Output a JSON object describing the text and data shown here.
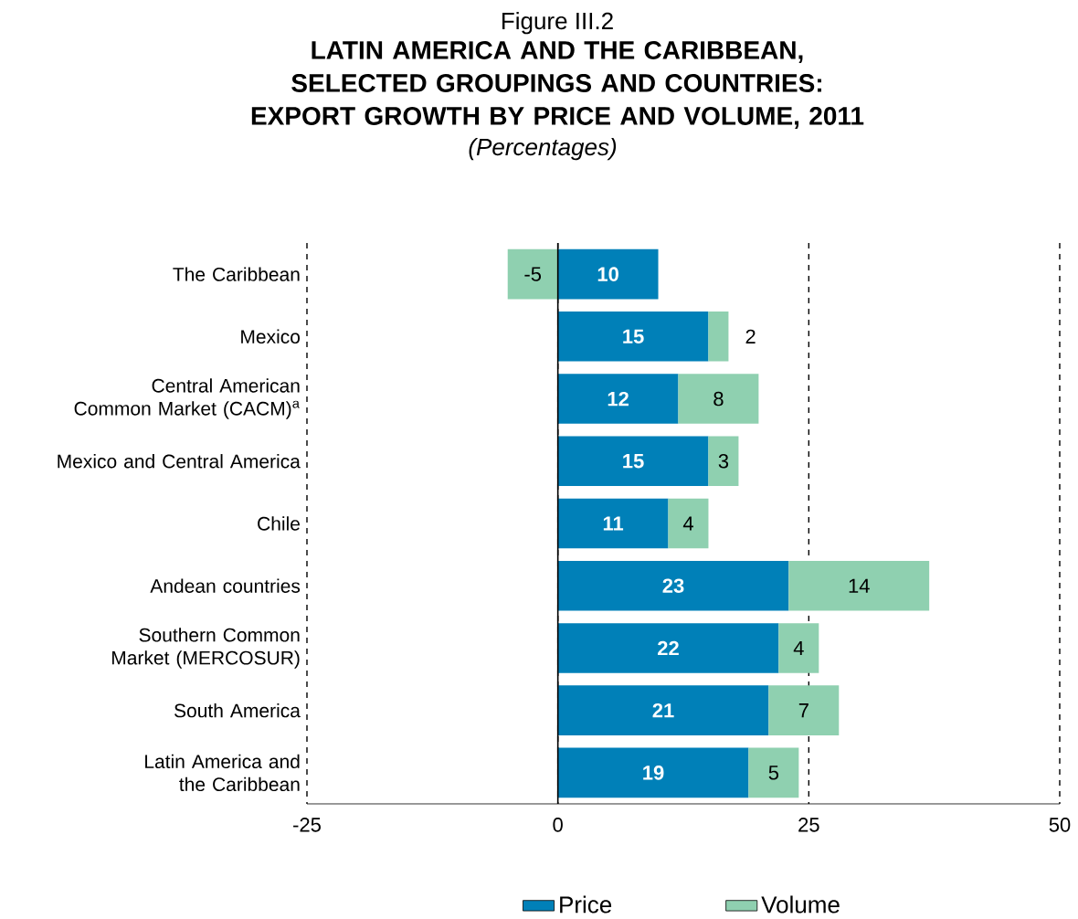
{
  "chart_data": {
    "type": "bar",
    "orientation": "horizontal",
    "stacked": true,
    "title": "LATIN AMERICA AND THE CARIBBEAN, SELECTED GROUPINGS AND COUNTRIES: EXPORT GROWTH BY PRICE AND VOLUME, 2011",
    "subtitle": "(Percentages)",
    "annotations": [
      "Figure III.2"
    ],
    "categories": [
      "The Caribbean",
      "Mexico",
      "Central American Common Market (CACM)$^{a}$",
      "Mexico and Central America",
      "Chile",
      "Andean countries",
      "Southern Common Market (MERCOSUR)",
      "South America",
      "Latin America and the Caribbean"
    ],
    "series": [
      {
        "name": "Price",
        "color": "#0080b8",
        "values": [
          10,
          15,
          12,
          15,
          11,
          23,
          22,
          21,
          19
        ]
      },
      {
        "name": "Volume",
        "color": "#8fd0b0",
        "values": [
          -5,
          2,
          8,
          3,
          4,
          14,
          4,
          7,
          5
        ]
      }
    ],
    "xlim": [
      -25,
      50
    ],
    "xticks": [
      -25,
      0,
      25,
      50
    ],
    "grid": "x",
    "legend": "bottom",
    "data_labels": true
  }
}
